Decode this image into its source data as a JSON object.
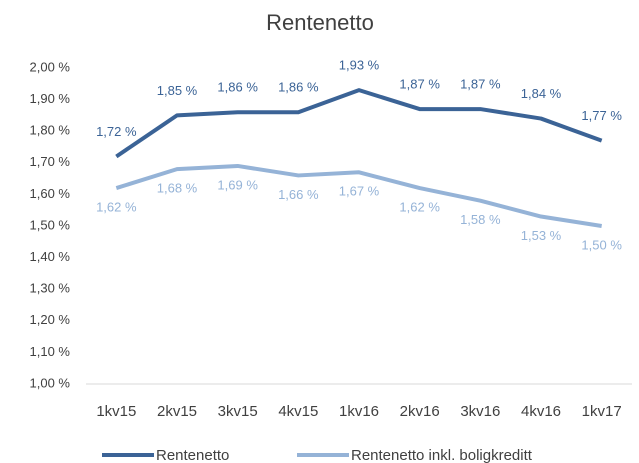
{
  "chart_data": {
    "type": "line",
    "title": "Rentenetto",
    "categories": [
      "1kv15",
      "2kv15",
      "3kv15",
      "4kv15",
      "1kv16",
      "2kv16",
      "3kv16",
      "4kv16",
      "1kv17"
    ],
    "series": [
      {
        "name": "Rentenetto",
        "color": "#3b6396",
        "values": [
          1.72,
          1.85,
          1.86,
          1.86,
          1.93,
          1.87,
          1.87,
          1.84,
          1.77
        ],
        "value_labels": [
          "1,72 %",
          "1,85 %",
          "1,86 %",
          "1,86 %",
          "1,93 %",
          "1,87 %",
          "1,87 %",
          "1,84 %",
          "1,77 %"
        ]
      },
      {
        "name": "Rentenetto inkl. boligkreditt",
        "color": "#95b3d7",
        "values": [
          1.62,
          1.68,
          1.69,
          1.66,
          1.67,
          1.62,
          1.58,
          1.53,
          1.5
        ],
        "value_labels": [
          "1,62 %",
          "1,68 %",
          "1,69 %",
          "1,66 %",
          "1,67 %",
          "1,62 %",
          "1,58 %",
          "1,53 %",
          "1,50 %"
        ]
      }
    ],
    "ylim": [
      1.0,
      2.0
    ],
    "yticks": [
      {
        "value": 1.0,
        "label": "1,00 %"
      },
      {
        "value": 1.1,
        "label": "1,10 %"
      },
      {
        "value": 1.2,
        "label": "1,20 %"
      },
      {
        "value": 1.3,
        "label": "1,30 %"
      },
      {
        "value": 1.4,
        "label": "1,40 %"
      },
      {
        "value": 1.5,
        "label": "1,50 %"
      },
      {
        "value": 1.6,
        "label": "1,60 %"
      },
      {
        "value": 1.7,
        "label": "1,70 %"
      },
      {
        "value": 1.8,
        "label": "1,80 %"
      },
      {
        "value": 1.9,
        "label": "1,90 %"
      },
      {
        "value": 2.0,
        "label": "2,00 %"
      }
    ],
    "grid": false,
    "legend": "bottom"
  }
}
